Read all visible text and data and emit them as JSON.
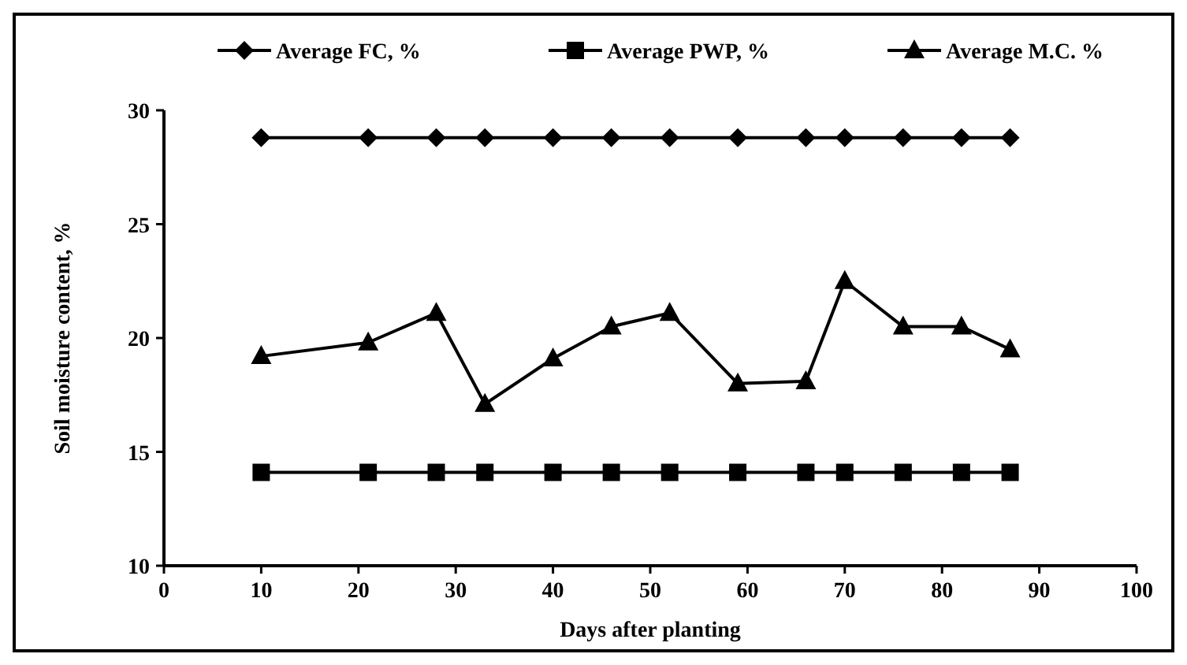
{
  "chart_data": {
    "type": "line",
    "xlabel": "Days after planting",
    "ylabel": "Soil moisture content, %",
    "x": [
      10,
      21,
      28,
      33,
      40,
      46,
      52,
      59,
      66,
      70,
      76,
      82,
      87
    ],
    "series": [
      {
        "name": "Average FC, %",
        "color": "#000000",
        "marker": "diamond",
        "values": [
          28.8,
          28.8,
          28.8,
          28.8,
          28.8,
          28.8,
          28.8,
          28.8,
          28.8,
          28.8,
          28.8,
          28.8,
          28.8
        ]
      },
      {
        "name": "Average PWP, %",
        "color": "#000000",
        "marker": "square",
        "values": [
          14.1,
          14.1,
          14.1,
          14.1,
          14.1,
          14.1,
          14.1,
          14.1,
          14.1,
          14.1,
          14.1,
          14.1,
          14.1
        ]
      },
      {
        "name": "Average M.C. %",
        "color": "#000000",
        "marker": "triangle",
        "values": [
          19.2,
          19.8,
          21.1,
          17.1,
          19.1,
          20.5,
          21.1,
          18.0,
          18.1,
          22.5,
          20.5,
          20.5,
          19.5
        ]
      }
    ],
    "xlim": [
      0,
      100
    ],
    "xticks": [
      0,
      10,
      20,
      30,
      40,
      50,
      60,
      70,
      80,
      90,
      100
    ],
    "ylim": [
      10,
      30
    ],
    "yticks": [
      10,
      15,
      20,
      25,
      30
    ],
    "grid": false,
    "legend": "top",
    "line_style": "solid"
  }
}
